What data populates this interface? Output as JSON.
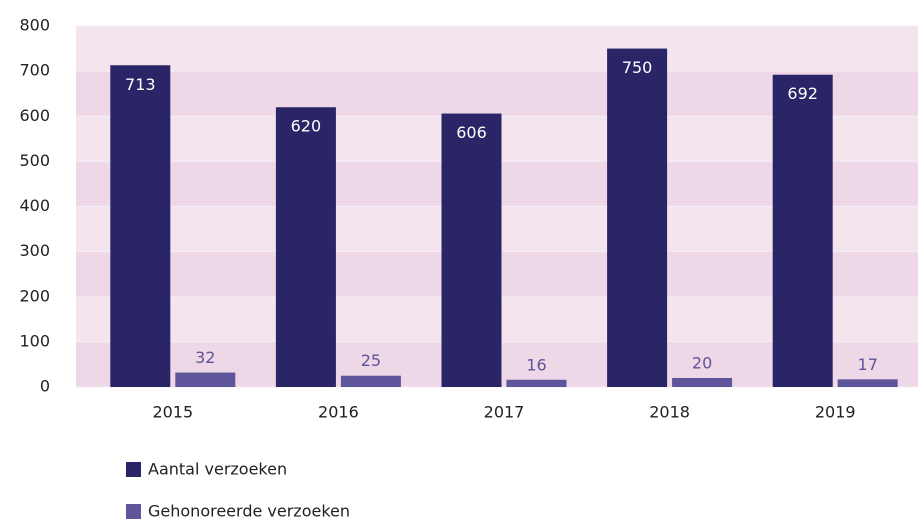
{
  "chart_data": {
    "type": "bar",
    "categories": [
      "2015",
      "2016",
      "2017",
      "2018",
      "2019"
    ],
    "series": [
      {
        "name": "Aantal verzoeken",
        "color": "#2a2566",
        "values": [
          713,
          620,
          606,
          750,
          692
        ]
      },
      {
        "name": "Gehonoreerde verzoeken",
        "color": "#5e559a",
        "values": [
          32,
          25,
          16,
          20,
          17
        ]
      }
    ],
    "ylim": [
      0,
      800
    ],
    "yticks": [
      0,
      100,
      200,
      300,
      400,
      500,
      600,
      700,
      800
    ],
    "grid": true
  }
}
